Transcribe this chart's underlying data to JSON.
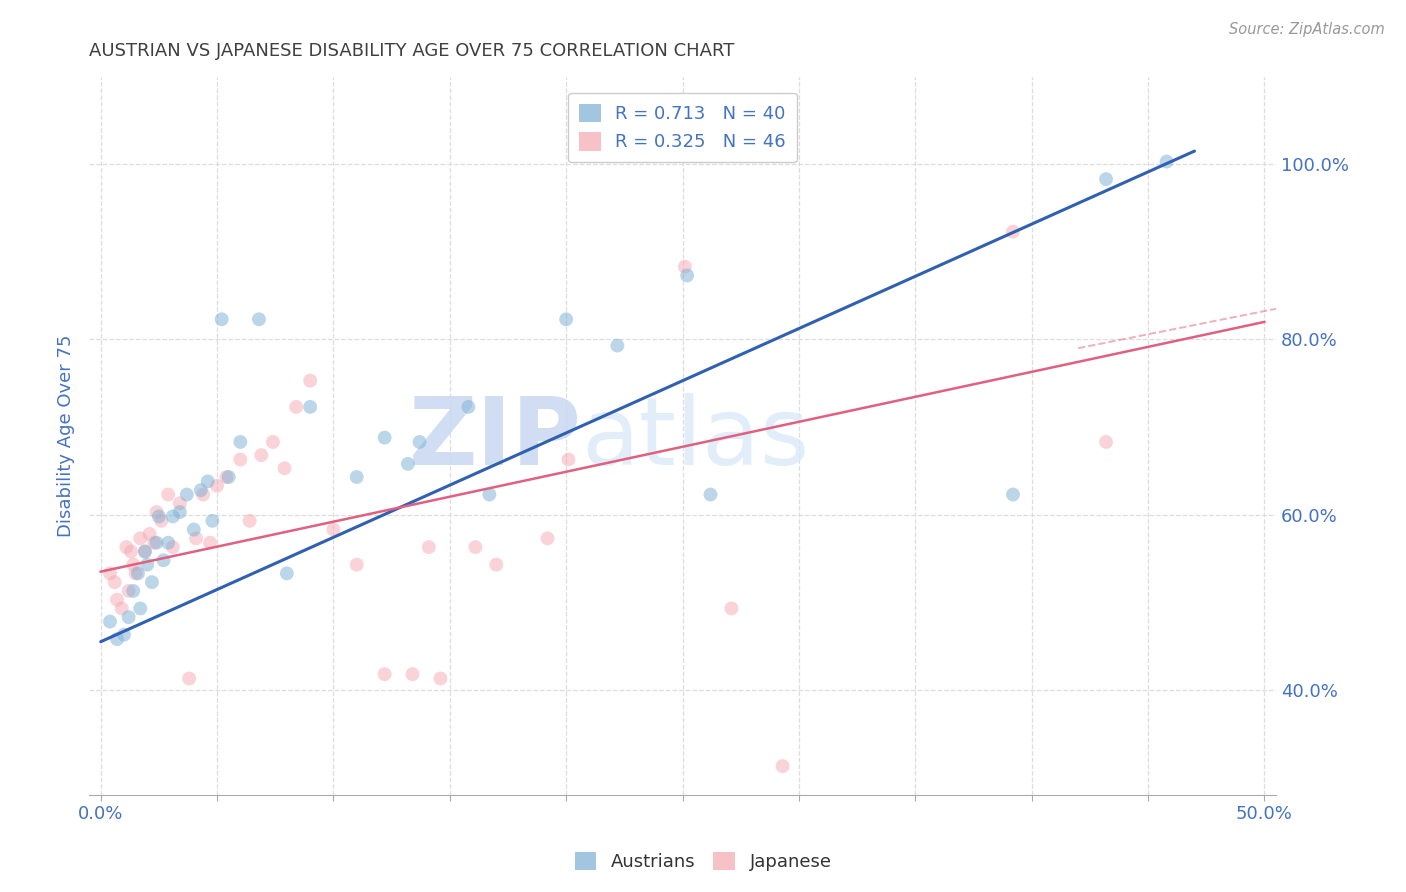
{
  "title": "AUSTRIAN VS JAPANESE DISABILITY AGE OVER 75 CORRELATION CHART",
  "source": "Source: ZipAtlas.com",
  "ylabel": "Disability Age Over 75",
  "watermark_zip": "ZIP",
  "watermark_atlas": "atlas",
  "legend1_label": "R = 0.713   N = 40",
  "legend2_label": "R = 0.325   N = 46",
  "austrians_color": "#7BAFD4",
  "japanese_color": "#F4A8B0",
  "trend_blue_color": "#3060B0",
  "trend_pink_color": "#E06080",
  "axis_label_color": "#4472C4",
  "title_color": "#404040",
  "grid_color": "#DDDDDD",
  "xlim": [
    -0.005,
    0.505
  ],
  "ylim": [
    0.28,
    1.1
  ],
  "right_yticks": [
    0.4,
    0.6,
    0.8,
    1.0
  ],
  "right_yticklabels": [
    "40.0%",
    "60.0%",
    "80.0%",
    "100.0%"
  ],
  "xticks": [
    0.0,
    0.05,
    0.1,
    0.15,
    0.2,
    0.25,
    0.3,
    0.35,
    0.4,
    0.45,
    0.5
  ],
  "xticklabels": [
    "0.0%",
    "",
    "",
    "",
    "",
    "",
    "",
    "",
    "",
    "",
    "50.0%"
  ],
  "austrians_x": [
    0.004,
    0.007,
    0.01,
    0.012,
    0.014,
    0.016,
    0.017,
    0.019,
    0.02,
    0.022,
    0.024,
    0.025,
    0.027,
    0.029,
    0.031,
    0.034,
    0.037,
    0.04,
    0.043,
    0.046,
    0.048,
    0.052,
    0.055,
    0.06,
    0.068,
    0.08,
    0.09,
    0.11,
    0.122,
    0.132,
    0.137,
    0.158,
    0.167,
    0.2,
    0.222,
    0.252,
    0.262,
    0.392,
    0.432,
    0.458
  ],
  "austrians_y": [
    0.478,
    0.458,
    0.463,
    0.483,
    0.513,
    0.533,
    0.493,
    0.558,
    0.543,
    0.523,
    0.568,
    0.598,
    0.548,
    0.568,
    0.598,
    0.603,
    0.623,
    0.583,
    0.628,
    0.638,
    0.593,
    0.823,
    0.643,
    0.683,
    0.823,
    0.533,
    0.723,
    0.643,
    0.688,
    0.658,
    0.683,
    0.723,
    0.623,
    0.823,
    0.793,
    0.873,
    0.623,
    0.623,
    0.983,
    1.003
  ],
  "japanese_x": [
    0.004,
    0.006,
    0.007,
    0.009,
    0.011,
    0.012,
    0.013,
    0.014,
    0.015,
    0.017,
    0.019,
    0.021,
    0.023,
    0.024,
    0.026,
    0.029,
    0.031,
    0.034,
    0.038,
    0.041,
    0.044,
    0.047,
    0.05,
    0.054,
    0.06,
    0.064,
    0.069,
    0.074,
    0.079,
    0.084,
    0.09,
    0.1,
    0.11,
    0.122,
    0.134,
    0.141,
    0.146,
    0.161,
    0.17,
    0.192,
    0.201,
    0.251,
    0.271,
    0.293,
    0.392,
    0.432
  ],
  "japanese_y": [
    0.533,
    0.523,
    0.503,
    0.493,
    0.563,
    0.513,
    0.558,
    0.543,
    0.533,
    0.573,
    0.558,
    0.578,
    0.568,
    0.603,
    0.593,
    0.623,
    0.563,
    0.613,
    0.413,
    0.573,
    0.623,
    0.568,
    0.633,
    0.643,
    0.663,
    0.593,
    0.668,
    0.683,
    0.653,
    0.723,
    0.753,
    0.583,
    0.543,
    0.418,
    0.418,
    0.563,
    0.413,
    0.563,
    0.543,
    0.573,
    0.663,
    0.883,
    0.493,
    0.313,
    0.923,
    0.683
  ],
  "austrians_size": 100,
  "japanese_size": 100,
  "austrians_alpha": 0.5,
  "japanese_alpha": 0.5,
  "blue_trend": [
    0.0,
    0.455,
    0.47,
    1.015
  ],
  "pink_trend_solid": [
    0.0,
    0.535,
    0.5,
    0.82
  ],
  "pink_trend_dashed": [
    0.42,
    0.79,
    0.505,
    0.835
  ]
}
